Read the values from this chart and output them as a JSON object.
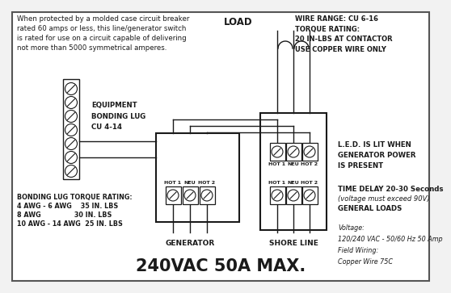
{
  "bg_color": "#f2f2f2",
  "border_color": "#888888",
  "title": "240VAC 50A MAX.",
  "top_left_text": "When protected by a molded case circuit breaker\nrated 60 amps or less, this line/generator switch\nis rated for use on a circuit capable of delivering\nnot more than 5000 symmetrical amperes.",
  "top_right_text": "WIRE RANGE: CU 6-16\nTORQUE RATING:\n20 IN-LBS AT CONTACTOR\nUSE COPPER WIRE ONLY",
  "load_label": "LOAD",
  "equipment_text": "EQUIPMENT\nBONDING LUG\nCU 4-14",
  "bonding_torque_line1": "BONDING LUG TORQUE RATING:",
  "bonding_torque_line2": "4 AWG - 6 AWG    35 IN. LBS",
  "bonding_torque_line3": "8 AWG               30 IN. LBS",
  "bonding_torque_line4": "10 AWG - 14 AWG  25 IN. LBS",
  "generator_label": "GENERATOR",
  "shore_label": "SHORE LINE",
  "led_text": "L.E.D. IS LIT WHEN\nGENERATOR POWER\nIS PRESENT",
  "time_delay_text_bold": "TIME DELAY 20-30 Seconds",
  "time_delay_text2": "(voltage must exceed 90V)",
  "time_delay_text3": "GENERAL LOADS",
  "voltage_text": "Voltage:\n120/240 VAC - 50/60 Hz 50 Amp\nField Wiring:\nCopper Wire 75C",
  "gen_labels": [
    "HOT 1",
    "NEU",
    "HOT 2"
  ],
  "shore_labels_top": [
    "HOT 1",
    "NEU",
    "HOT 2"
  ],
  "shore_labels_bot": [
    "HOT 1",
    "NEU",
    "HOT 2"
  ],
  "black": "#1a1a1a",
  "white": "#ffffff"
}
